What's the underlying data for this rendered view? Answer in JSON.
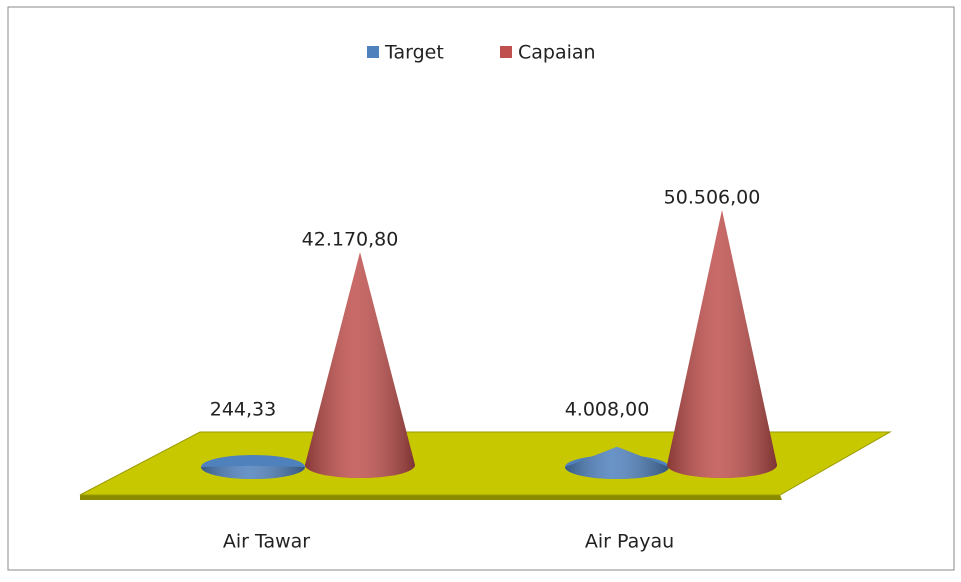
{
  "chart_data": {
    "type": "cone",
    "categories": [
      "Air Tawar",
      "Air Payau"
    ],
    "series": [
      {
        "name": "Target",
        "color": "#4f81bd",
        "values": [
          244.33,
          4008
        ],
        "value_labels": [
          "244,33",
          "4.008,00"
        ]
      },
      {
        "name": "Capaian",
        "color": "#c0504d",
        "values": [
          42170.8,
          50506
        ],
        "value_labels": [
          "42.170,80",
          "50.506,00"
        ]
      }
    ],
    "legend": "top",
    "floor_color": "#c8c800"
  }
}
